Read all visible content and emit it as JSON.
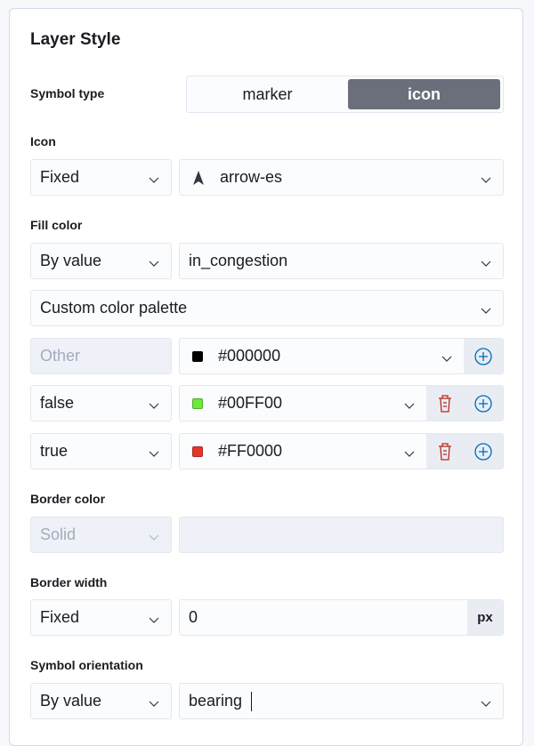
{
  "title": "Layer Style",
  "symbol_type": {
    "label": "Symbol type",
    "options": [
      "marker",
      "icon"
    ],
    "selected": "icon"
  },
  "icon": {
    "label": "Icon",
    "mode": "Fixed",
    "value": "arrow-es"
  },
  "fill_color": {
    "label": "Fill color",
    "mode": "By value",
    "field": "in_congestion",
    "palette": "Custom color palette",
    "stops": [
      {
        "key": "Other",
        "color": "#000000"
      },
      {
        "key": "false",
        "color": "#00FF00"
      },
      {
        "key": "true",
        "color": "#FF0000"
      }
    ]
  },
  "border_color": {
    "label": "Border color",
    "mode": "Solid",
    "value": ""
  },
  "border_width": {
    "label": "Border width",
    "mode": "Fixed",
    "value": "0",
    "unit": "px"
  },
  "orientation": {
    "label": "Symbol orientation",
    "mode": "By value",
    "field": "bearing"
  },
  "colors": {
    "accent": "#006bb8",
    "danger": "#bd271e",
    "selected_bg": "#6a6f7b"
  }
}
